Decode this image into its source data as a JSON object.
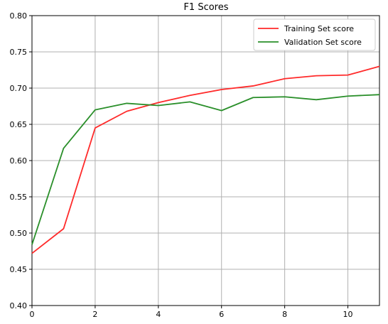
{
  "chart_data": {
    "type": "line",
    "title": "F1 Scores",
    "xlabel": "",
    "ylabel": "",
    "xlim": [
      0,
      11
    ],
    "ylim": [
      0.4,
      0.8
    ],
    "xticks": [
      0,
      2,
      4,
      6,
      8,
      10
    ],
    "yticks": [
      "0.40",
      "0.45",
      "0.50",
      "0.55",
      "0.60",
      "0.65",
      "0.70",
      "0.75",
      "0.80"
    ],
    "grid": true,
    "legend_position": "top-right",
    "x": [
      0,
      1,
      2,
      3,
      4,
      5,
      6,
      7,
      8,
      9,
      10,
      11
    ],
    "series": [
      {
        "name": "Training Set score",
        "color": "#ff2a2a",
        "values": [
          0.472,
          0.506,
          0.645,
          0.668,
          0.68,
          0.69,
          0.698,
          0.703,
          0.713,
          0.717,
          0.718,
          0.73
        ]
      },
      {
        "name": "Validation Set score",
        "color": "#2a8f2a",
        "values": [
          0.484,
          0.617,
          0.67,
          0.679,
          0.676,
          0.681,
          0.669,
          0.687,
          0.688,
          0.684,
          0.689,
          0.691
        ]
      }
    ]
  }
}
